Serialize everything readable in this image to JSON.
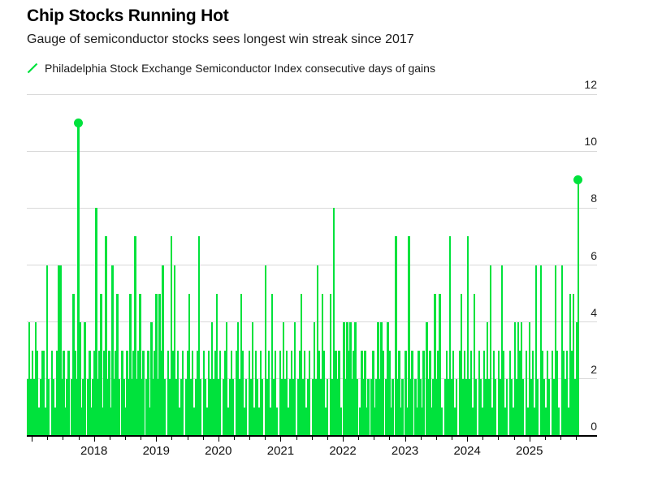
{
  "header": {
    "title": "Chip Stocks Running Hot",
    "subtitle": "Gauge of semiconductor stocks sees longest win streak since 2017",
    "legend_label": "Philadelphia Stock Exchange Semiconductor Index consecutive days of gains"
  },
  "colors": {
    "accent_green": "#00e23c",
    "grid_gray": "#d9d9d9",
    "axis_black": "#000000"
  },
  "chart_data": {
    "type": "bar",
    "title": "Chip Stocks Running Hot",
    "subtitle": "Gauge of semiconductor stocks sees longest win streak since 2017",
    "series_name": "Philadelphia Stock Exchange Semiconductor Index consecutive days of gains",
    "ylabel": "Consecutive days of gains",
    "ylim": [
      0,
      12
    ],
    "yticks": [
      0,
      2,
      4,
      6,
      8,
      10,
      12
    ],
    "x_start_year": 2016.92,
    "x_end_year": 2025.8,
    "xticks": [
      2018,
      2019,
      2020,
      2021,
      2022,
      2023,
      2024,
      2025
    ],
    "grid": true,
    "legend_position": "top-left",
    "notable_streaks": [
      {
        "approx_year": 2017.75,
        "days": 11
      },
      {
        "approx_year": 2018.05,
        "days": 8
      },
      {
        "approx_year": 2018.18,
        "days": 7
      },
      {
        "approx_year": 2018.66,
        "days": 7
      },
      {
        "approx_year": 2019.25,
        "days": 7
      },
      {
        "approx_year": 2019.69,
        "days": 7
      },
      {
        "approx_year": 2020.76,
        "days": 6
      },
      {
        "approx_year": 2021.87,
        "days": 8
      },
      {
        "approx_year": 2022.85,
        "days": 7
      },
      {
        "approx_year": 2023.07,
        "days": 7
      },
      {
        "approx_year": 2023.72,
        "days": 7
      },
      {
        "approx_year": 2024.0,
        "days": 7
      },
      {
        "approx_year": 2025.77,
        "days": 9
      }
    ],
    "markers": [
      {
        "column": 31,
        "value": 11
      },
      {
        "column": 338,
        "value": 9
      }
    ],
    "columns_encoding": "one character per ~half-week bucket from early 2017 to Oct 2025; value = consecutive days of gains (0 = decline day gap, b = 11)",
    "columns": "2423243123316203213662312302532b4124023123823513723162352032132523723523023142352536203273623123023523123720321324235230234123203425312032413213206231523103242312324023523123024263253120528323104243423420132312023124243024312072312031723021321304231252351023272312035232723152032132426132032631203214243420314231620632132032631063231535249"
  }
}
